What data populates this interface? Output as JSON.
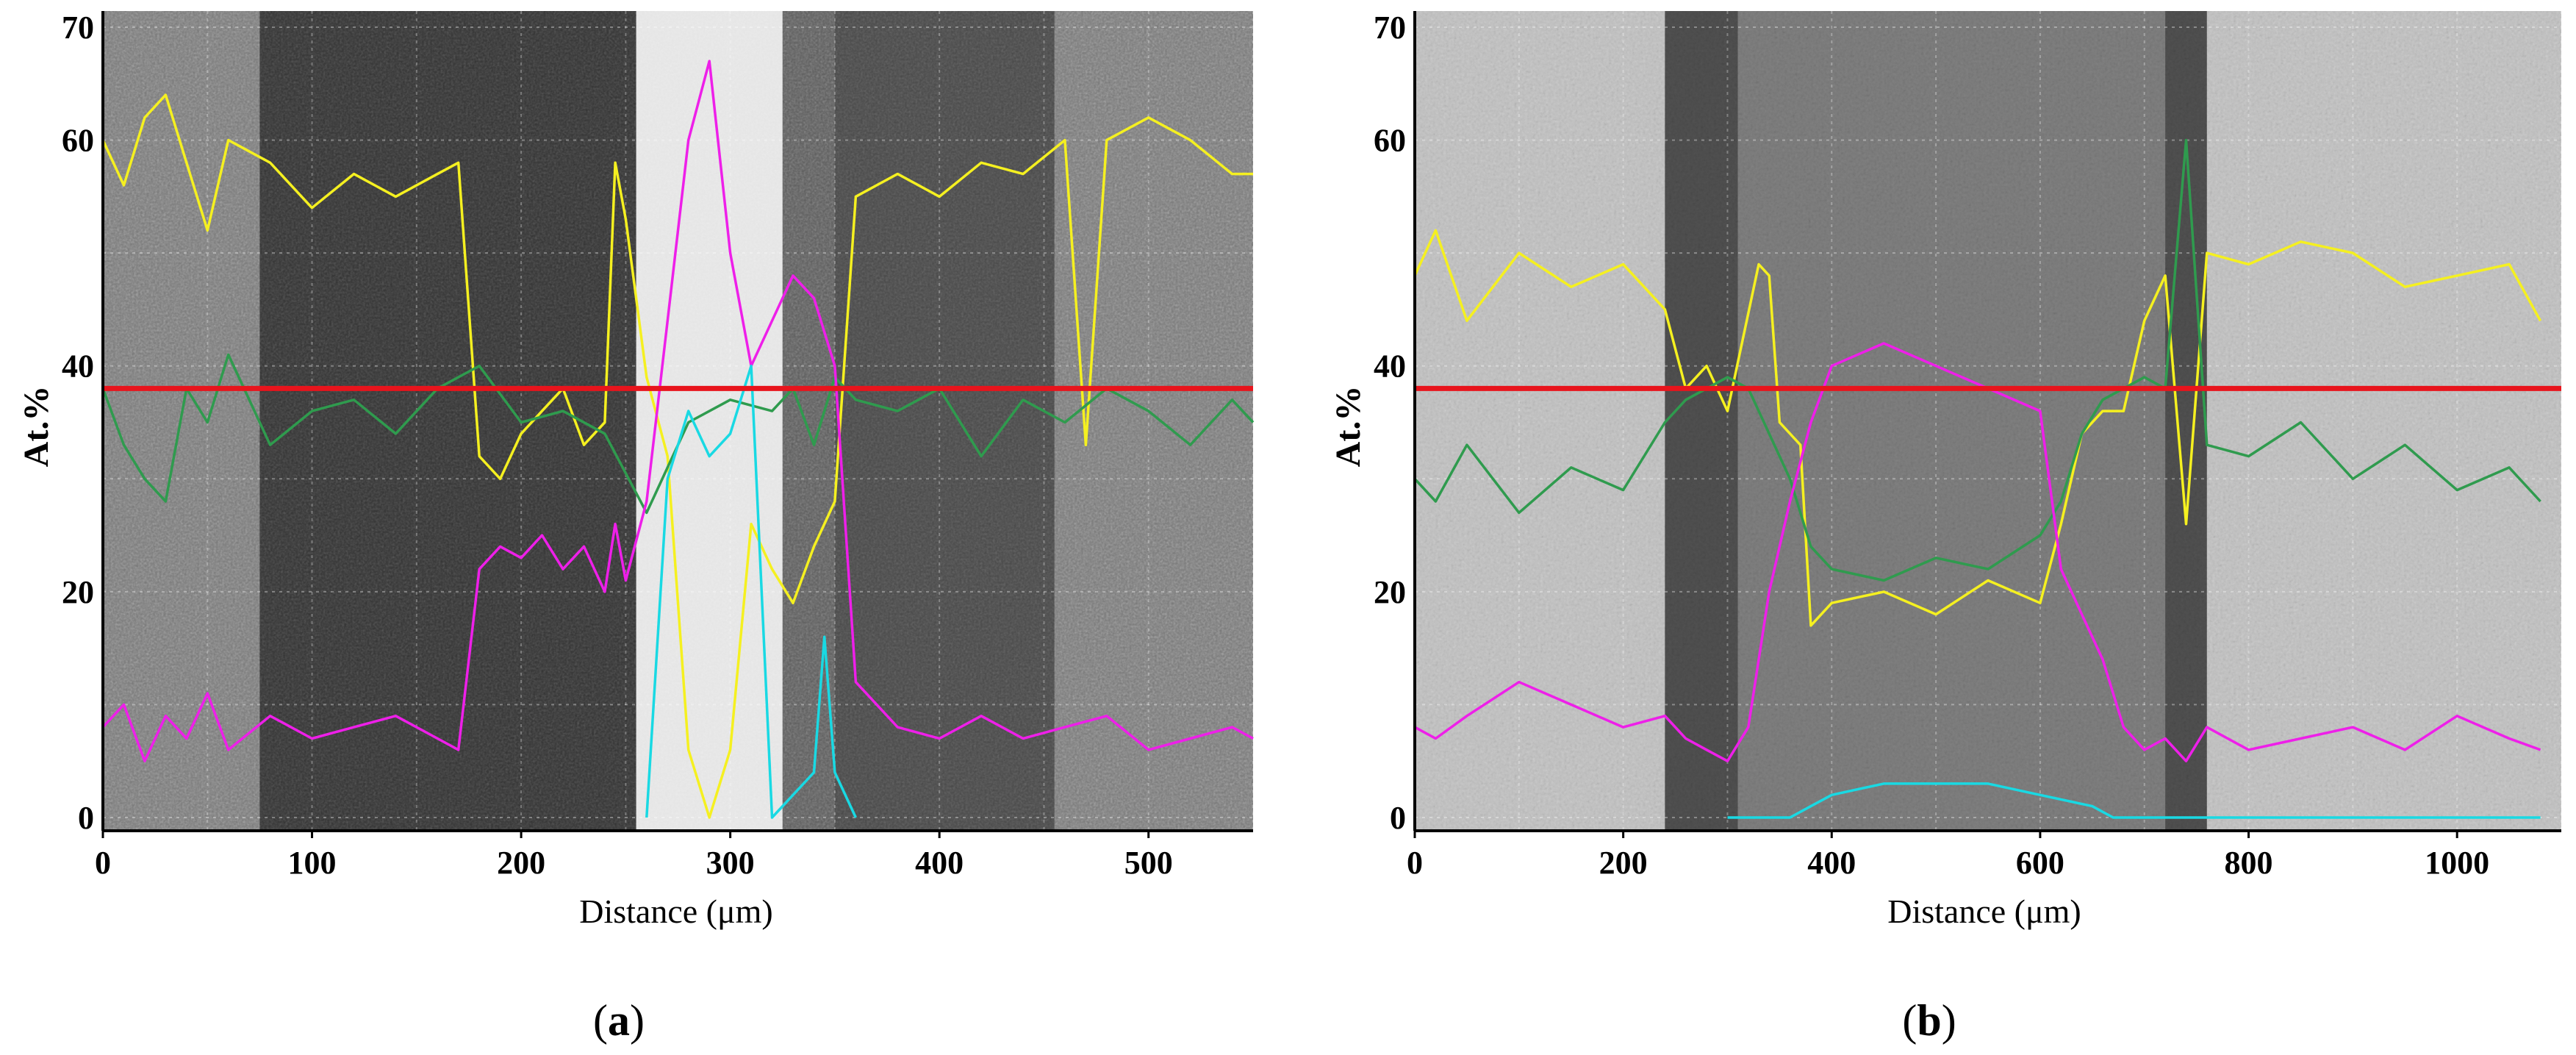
{
  "chart_data": [
    {
      "panel_id": "a",
      "caption_label": "a",
      "caption_open": "(",
      "caption_close": ")",
      "type": "line",
      "xlabel": "Distance (μm)",
      "ylabel": "At.%",
      "xlim": [
        0,
        550
      ],
      "ylim": [
        0,
        70
      ],
      "x_ticks": [
        0,
        100,
        200,
        300,
        400,
        500
      ],
      "y_ticks": [
        0,
        20,
        40,
        60
      ],
      "y_ticks_gridded": [
        0,
        10,
        20,
        30,
        40,
        50,
        60,
        70
      ],
      "y_tick_labels": [
        "0",
        "20",
        "40",
        "60",
        "70"
      ],
      "x_tick_labels": [
        "0",
        "100",
        "200",
        "300",
        "400",
        "500"
      ],
      "line_scan_y": 38.0,
      "line_scan_color": "#e8141c",
      "background_regions": [
        {
          "from": 0,
          "to": 75,
          "shade": "rough-light"
        },
        {
          "from": 75,
          "to": 175,
          "shade": "dark"
        },
        {
          "from": 175,
          "to": 255,
          "shade": "dark"
        },
        {
          "from": 255,
          "to": 325,
          "shade": "bright"
        },
        {
          "from": 325,
          "to": 350,
          "shade": "striped"
        },
        {
          "from": 350,
          "to": 455,
          "shade": "mid"
        },
        {
          "from": 455,
          "to": 550,
          "shade": "rough-light"
        }
      ],
      "series": [
        {
          "name": "yellow",
          "color": "#f5f020",
          "x": [
            0,
            10,
            20,
            30,
            40,
            50,
            60,
            80,
            100,
            120,
            140,
            160,
            170,
            180,
            190,
            200,
            210,
            220,
            230,
            240,
            245,
            250,
            260,
            270,
            280,
            290,
            300,
            310,
            320,
            330,
            340,
            350,
            360,
            370,
            380,
            400,
            420,
            440,
            460,
            470,
            480,
            500,
            520,
            540,
            550
          ],
          "y": [
            60,
            56,
            62,
            64,
            58,
            52,
            60,
            58,
            54,
            57,
            55,
            57,
            58,
            32,
            30,
            34,
            36,
            38,
            33,
            35,
            58,
            53,
            39,
            32,
            6,
            0,
            6,
            26,
            22,
            19,
            24,
            28,
            55,
            56,
            57,
            55,
            58,
            57,
            60,
            33,
            60,
            62,
            60,
            57,
            57
          ]
        },
        {
          "name": "green",
          "color": "#2f9b4e",
          "x": [
            0,
            10,
            20,
            30,
            40,
            50,
            60,
            80,
            100,
            120,
            140,
            160,
            180,
            200,
            220,
            240,
            260,
            280,
            300,
            320,
            330,
            340,
            350,
            360,
            380,
            400,
            420,
            440,
            460,
            480,
            500,
            520,
            540,
            550
          ],
          "y": [
            38,
            33,
            30,
            28,
            38,
            35,
            41,
            33,
            36,
            37,
            34,
            38,
            40,
            35,
            36,
            34,
            27,
            35,
            37,
            36,
            38,
            33,
            39,
            37,
            36,
            38,
            32,
            37,
            35,
            38,
            36,
            33,
            37,
            35
          ]
        },
        {
          "name": "magenta",
          "color": "#ee1fe9",
          "x": [
            0,
            10,
            20,
            30,
            40,
            50,
            60,
            80,
            100,
            120,
            140,
            160,
            170,
            180,
            190,
            200,
            210,
            220,
            230,
            240,
            245,
            250,
            260,
            270,
            280,
            290,
            300,
            310,
            320,
            330,
            340,
            350,
            360,
            380,
            400,
            420,
            440,
            460,
            480,
            500,
            520,
            540,
            550
          ],
          "y": [
            8,
            10,
            5,
            9,
            7,
            11,
            6,
            9,
            7,
            8,
            9,
            7,
            6,
            22,
            24,
            23,
            25,
            22,
            24,
            20,
            26,
            21,
            28,
            44,
            60,
            67,
            50,
            40,
            44,
            48,
            46,
            40,
            12,
            8,
            7,
            9,
            7,
            8,
            9,
            6,
            7,
            8,
            7
          ]
        },
        {
          "name": "cyan",
          "color": "#19d9e3",
          "x": [
            260,
            270,
            280,
            290,
            300,
            310,
            320,
            330,
            340,
            345,
            350,
            360
          ],
          "y": [
            0,
            30,
            36,
            32,
            34,
            40,
            0,
            2,
            4,
            16,
            4,
            0
          ]
        }
      ]
    },
    {
      "panel_id": "b",
      "caption_label": "b",
      "caption_open": "(",
      "caption_close": ")",
      "type": "line",
      "xlabel": "Distance (μm)",
      "ylabel": "At.%",
      "xlim": [
        0,
        1100
      ],
      "ylim": [
        0,
        70
      ],
      "x_ticks": [
        0,
        200,
        400,
        600,
        800,
        1000
      ],
      "y_ticks": [
        0,
        20,
        40,
        60
      ],
      "y_tick_labels": [
        "0",
        "20",
        "40",
        "60",
        "70"
      ],
      "x_tick_labels": [
        "0",
        "200",
        "400",
        "600",
        "800",
        "1000"
      ],
      "line_scan_y": 38.0,
      "line_scan_color": "#e8141c",
      "background_regions": [
        {
          "from": 0,
          "to": 240,
          "shade": "rough-light"
        },
        {
          "from": 240,
          "to": 310,
          "shade": "dark-edge"
        },
        {
          "from": 310,
          "to": 720,
          "shade": "mid"
        },
        {
          "from": 720,
          "to": 760,
          "shade": "dark-edge"
        },
        {
          "from": 760,
          "to": 1100,
          "shade": "rough-light"
        }
      ],
      "series": [
        {
          "name": "yellow",
          "color": "#f5f020",
          "x": [
            0,
            20,
            50,
            100,
            150,
            200,
            240,
            260,
            280,
            300,
            330,
            340,
            350,
            370,
            380,
            400,
            450,
            500,
            550,
            600,
            620,
            640,
            660,
            680,
            700,
            720,
            740,
            760,
            800,
            850,
            900,
            950,
            1000,
            1050,
            1080
          ],
          "y": [
            48,
            52,
            44,
            50,
            47,
            49,
            45,
            38,
            40,
            36,
            49,
            48,
            35,
            33,
            17,
            19,
            20,
            18,
            21,
            19,
            26,
            34,
            36,
            36,
            44,
            48,
            26,
            50,
            49,
            51,
            50,
            47,
            48,
            49,
            44
          ]
        },
        {
          "name": "green",
          "color": "#2f9b4e",
          "x": [
            0,
            20,
            50,
            100,
            150,
            200,
            240,
            260,
            280,
            300,
            320,
            340,
            360,
            380,
            400,
            450,
            500,
            550,
            600,
            620,
            640,
            660,
            680,
            700,
            720,
            740,
            760,
            800,
            850,
            900,
            950,
            1000,
            1050,
            1080
          ],
          "y": [
            30,
            28,
            33,
            27,
            31,
            29,
            35,
            37,
            38,
            39,
            38,
            34,
            30,
            24,
            22,
            21,
            23,
            22,
            25,
            28,
            34,
            37,
            38,
            39,
            38,
            60,
            33,
            32,
            35,
            30,
            33,
            29,
            31,
            28
          ]
        },
        {
          "name": "magenta",
          "color": "#ee1fe9",
          "x": [
            0,
            20,
            50,
            100,
            150,
            200,
            240,
            260,
            280,
            300,
            320,
            340,
            360,
            380,
            400,
            450,
            500,
            550,
            600,
            620,
            640,
            660,
            680,
            700,
            720,
            740,
            760,
            800,
            850,
            900,
            950,
            1000,
            1050,
            1080
          ],
          "y": [
            8,
            7,
            9,
            12,
            10,
            8,
            9,
            7,
            6,
            5,
            8,
            20,
            28,
            35,
            40,
            42,
            40,
            38,
            36,
            22,
            18,
            14,
            8,
            6,
            7,
            5,
            8,
            6,
            7,
            8,
            6,
            9,
            7,
            6
          ]
        },
        {
          "name": "cyan",
          "color": "#19d9e3",
          "x": [
            300,
            340,
            360,
            380,
            400,
            450,
            500,
            550,
            600,
            650,
            670,
            1080
          ],
          "y": [
            0,
            0,
            0,
            1,
            2,
            3,
            3,
            3,
            2,
            1,
            0,
            0
          ]
        }
      ]
    }
  ]
}
